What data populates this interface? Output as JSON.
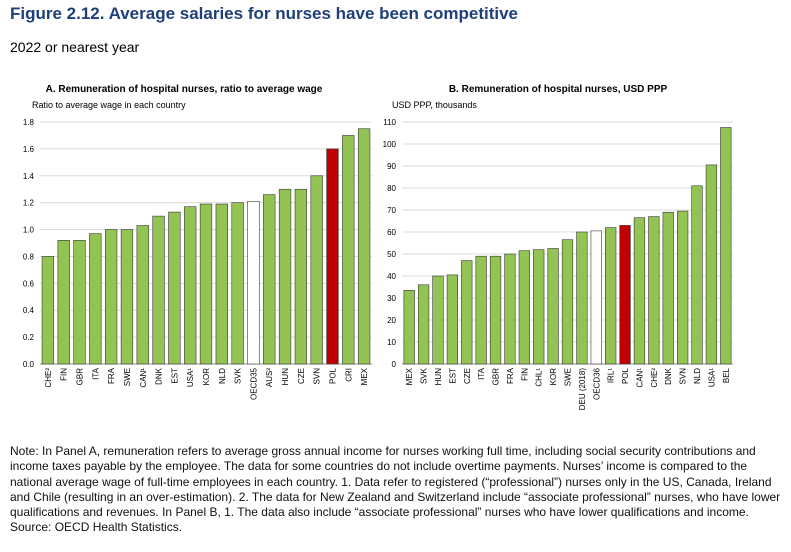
{
  "figure": {
    "title": "Figure 2.12. Average salaries for nurses have been competitive",
    "subtitle": "2022 or nearest year"
  },
  "colors": {
    "green": "#92c353",
    "red": "#c00000",
    "white": "#ffffff",
    "edge": "#3a3a3a",
    "grid": "#dcdcdc"
  },
  "chart_data": [
    {
      "type": "bar",
      "title": "A. Remuneration of hospital nurses, ratio to average wage",
      "ylabel": "Ratio to average wage in each country",
      "xlabel": "",
      "ylim": [
        0,
        1.8
      ],
      "yticks": [
        "0.0",
        "0.2",
        "0.4",
        "0.6",
        "0.8",
        "1.0",
        "1.2",
        "1.4",
        "1.6",
        "1.8"
      ],
      "categories": [
        "CHE²",
        "FIN",
        "GBR",
        "ITA",
        "FRA",
        "SWE",
        "CAN¹",
        "DNK",
        "EST",
        "USA¹",
        "KOR",
        "NLD",
        "SVK",
        "OECD35",
        "AUS²",
        "HUN",
        "CZE",
        "SVN",
        "POL",
        "CRI",
        "MEX"
      ],
      "values": [
        0.8,
        0.92,
        0.92,
        0.97,
        1.0,
        1.0,
        1.03,
        1.1,
        1.13,
        1.17,
        1.19,
        1.19,
        1.2,
        1.21,
        1.26,
        1.3,
        1.3,
        1.4,
        1.6,
        1.7,
        1.75
      ],
      "highlight": {
        "OECD35": "white",
        "POL": "red"
      }
    },
    {
      "type": "bar",
      "title": "B. Remuneration of hospital nurses, USD PPP",
      "ylabel": "USD PPP, thousands",
      "xlabel": "",
      "ylim": [
        0,
        110
      ],
      "yticks": [
        "0",
        "10",
        "20",
        "30",
        "40",
        "50",
        "60",
        "70",
        "80",
        "90",
        "100",
        "110"
      ],
      "categories": [
        "MEX",
        "SVK",
        "HUN",
        "EST",
        "CZE",
        "ITA",
        "GBR",
        "FRA",
        "FIN",
        "CHL¹",
        "KOR",
        "SWE",
        "DEU (2018)",
        "OECD36",
        "IRL¹",
        "POL",
        "CAN¹",
        "CHE²",
        "DNK",
        "SVN",
        "NLD",
        "USA¹",
        "BEL"
      ],
      "values": [
        33.5,
        36,
        40,
        40.5,
        47,
        49,
        49,
        50,
        51.5,
        52,
        52.5,
        56.5,
        60,
        60.5,
        62,
        63,
        66.5,
        67,
        69,
        69.5,
        81,
        90.5,
        107.5
      ],
      "highlight": {
        "OECD36": "white",
        "POL": "red"
      }
    }
  ],
  "note": {
    "text": "Note: In Panel A, remuneration refers to average gross annual income for nurses working full time, including social security contributions and income taxes payable by the employee. The data for some countries do not include overtime payments. Nurses’ income is compared to the national average wage of full-time employees in each country. 1. Data refer to registered (“professional”) nurses only in the US, Canada, Ireland and Chile (resulting in an over-estimation). 2. The data for New Zealand and Switzerland include “associate professional” nurses, who have lower qualifications and revenues. In Panel B, 1. The data also include “associate professional” nurses who have lower qualifications and income.",
    "source": "Source: OECD Health Statistics."
  }
}
